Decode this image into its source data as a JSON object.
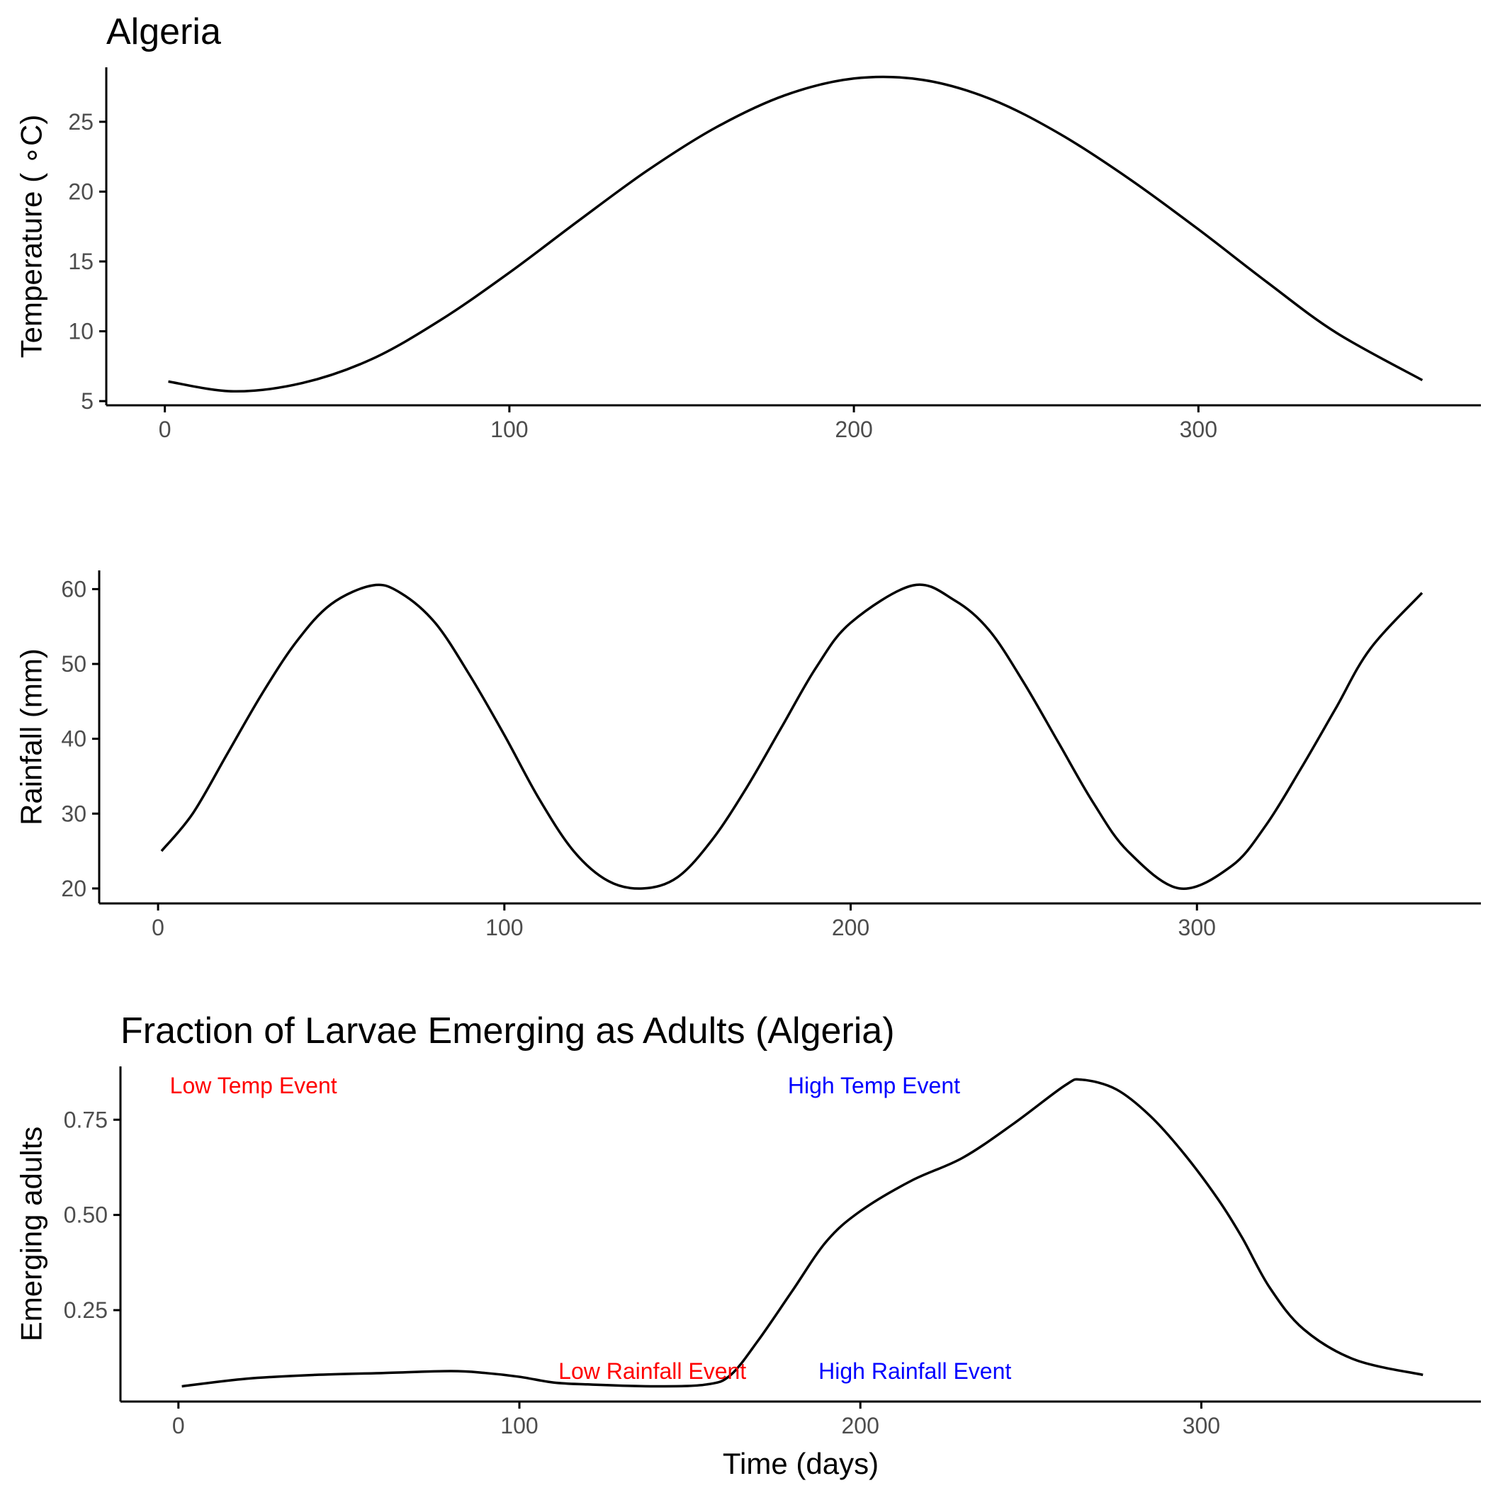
{
  "chart_data": [
    {
      "type": "line",
      "title": "Algeria",
      "xlabel": "",
      "ylabel": "Temperature ( ∘C)",
      "xlim": [
        -17,
        382
      ],
      "ylim": [
        4.7,
        28.9
      ],
      "xticks": [
        0,
        100,
        200,
        300
      ],
      "yticks": [
        5,
        10,
        15,
        20,
        25
      ],
      "grid": false,
      "series": [
        {
          "x": [
            1,
            20,
            40,
            60,
            80,
            100,
            120,
            140,
            160,
            180,
            200,
            220,
            240,
            260,
            280,
            300,
            320,
            340,
            365
          ],
          "y": [
            6.4,
            5.7,
            6.3,
            8.0,
            10.8,
            14.2,
            17.9,
            21.5,
            24.6,
            26.9,
            28.1,
            28.0,
            26.6,
            24.1,
            20.9,
            17.3,
            13.5,
            9.9,
            6.5
          ]
        }
      ]
    },
    {
      "type": "line",
      "title": "",
      "xlabel": "",
      "ylabel": "Rainfall (mm)",
      "xlim": [
        -17,
        382
      ],
      "ylim": [
        18,
        62.5
      ],
      "xticks": [
        0,
        100,
        200,
        300
      ],
      "yticks": [
        20,
        30,
        40,
        50,
        60
      ],
      "grid": false,
      "series": [
        {
          "x": [
            1,
            10,
            20,
            30,
            40,
            50,
            62,
            70,
            80,
            90,
            100,
            110,
            120,
            130,
            140,
            150,
            160,
            170,
            180,
            190,
            200,
            218,
            230,
            240,
            250,
            260,
            270,
            280,
            295,
            310,
            320,
            330,
            340,
            350,
            365
          ],
          "y": [
            25.0,
            30.0,
            38.0,
            46.0,
            53.0,
            58.0,
            60.5,
            59.5,
            55.5,
            48.5,
            40.5,
            32.0,
            25.0,
            21.0,
            20.0,
            21.5,
            26.5,
            33.5,
            41.5,
            49.5,
            55.5,
            60.5,
            58.5,
            54.5,
            47.5,
            39.5,
            31.5,
            25.0,
            20.0,
            23.0,
            28.5,
            36.0,
            44.0,
            52.0,
            59.5
          ]
        }
      ]
    },
    {
      "type": "line",
      "title": "Fraction of Larvae Emerging as Adults (Algeria)",
      "xlabel": "Time (days)",
      "ylabel": "Emerging adults",
      "xlim": [
        -17,
        382
      ],
      "ylim": [
        0.01,
        0.89
      ],
      "xticks": [
        0,
        100,
        200,
        300
      ],
      "yticks": [
        0.25,
        0.5,
        0.75
      ],
      "grid": false,
      "series": [
        {
          "x": [
            1,
            20,
            40,
            60,
            80,
            90,
            100,
            110,
            120,
            140,
            155,
            162,
            170,
            180,
            190,
            200,
            215,
            230,
            245,
            260,
            265,
            275,
            285,
            295,
            305,
            312,
            320,
            330,
            345,
            365
          ],
          "y": [
            0.05,
            0.07,
            0.08,
            0.085,
            0.09,
            0.085,
            0.075,
            0.06,
            0.055,
            0.05,
            0.055,
            0.08,
            0.17,
            0.3,
            0.43,
            0.51,
            0.59,
            0.65,
            0.74,
            0.84,
            0.855,
            0.83,
            0.76,
            0.66,
            0.54,
            0.44,
            0.31,
            0.2,
            0.12,
            0.08
          ]
        }
      ],
      "annotations": [
        {
          "text": "Low Temp Event",
          "x": 22,
          "y": 0.84,
          "color": "#ff0000"
        },
        {
          "text": "High Temp Event",
          "x": 204,
          "y": 0.84,
          "color": "#0000ff"
        },
        {
          "text": "Low Rainfall Event",
          "x": 139,
          "y": 0.09,
          "color": "#ff0000"
        },
        {
          "text": "High Rainfall Event",
          "x": 216,
          "y": 0.09,
          "color": "#0000ff"
        }
      ]
    }
  ]
}
